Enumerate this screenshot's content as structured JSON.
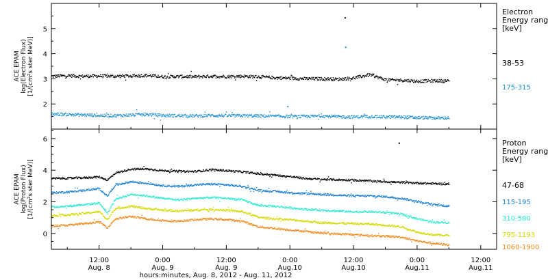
{
  "x_axis": {
    "title": "hours:minutes, Aug.  8, 2012 - Aug. 11, 2012",
    "ticks": [
      {
        "t": 12,
        "time": "12:00",
        "date": "Aug. 8"
      },
      {
        "t": 24,
        "time": "0:00",
        "date": "Aug. 9"
      },
      {
        "t": 36,
        "time": "12:00",
        "date": "Aug. 9"
      },
      {
        "t": 48,
        "time": "0:00",
        "date": "Aug.10"
      },
      {
        "t": 60,
        "time": "12:00",
        "date": "Aug.10"
      },
      {
        "t": 72,
        "time": "0:00",
        "date": "Aug.11"
      },
      {
        "t": 84,
        "time": "12:00",
        "date": "Aug.11"
      }
    ]
  },
  "chart_data": [
    {
      "type": "scatter",
      "panel": "electron",
      "ylabel_lines": [
        "ACE EPAM",
        "log(Electron Flux)",
        "[1/(cm²s ster MeV)]"
      ],
      "ylim": [
        1.0,
        6.0
      ],
      "yticks": [
        2,
        3,
        4,
        5
      ],
      "xlim_hours": [
        3,
        87
      ],
      "legend_title": [
        "Electron",
        "Energy ranges",
        "[keV]"
      ],
      "series": [
        {
          "name": "38-53",
          "color": "#000000",
          "x": [
            3,
            6,
            9,
            12,
            15,
            18,
            21,
            24,
            27,
            30,
            33,
            36,
            39,
            42,
            45,
            48,
            51,
            54,
            57,
            60,
            63,
            66,
            69,
            72,
            75,
            78
          ],
          "y": [
            3.12,
            3.14,
            3.12,
            3.13,
            3.12,
            3.13,
            3.15,
            3.1,
            3.11,
            3.1,
            3.12,
            3.11,
            3.12,
            3.1,
            3.06,
            3.04,
            3.02,
            3.02,
            3.0,
            3.05,
            3.18,
            2.98,
            2.96,
            2.92,
            2.94,
            2.93
          ]
        },
        {
          "name": "175-315",
          "color": "#1a8fd6",
          "x": [
            3,
            6,
            9,
            12,
            15,
            18,
            21,
            24,
            27,
            30,
            33,
            36,
            39,
            42,
            45,
            48,
            51,
            54,
            57,
            60,
            63,
            66,
            69,
            72,
            75,
            78
          ],
          "y": [
            1.62,
            1.6,
            1.58,
            1.56,
            1.55,
            1.58,
            1.6,
            1.56,
            1.55,
            1.54,
            1.56,
            1.55,
            1.55,
            1.54,
            1.53,
            1.52,
            1.52,
            1.54,
            1.51,
            1.5,
            1.52,
            1.5,
            1.5,
            1.47,
            1.46,
            1.46
          ]
        }
      ],
      "outliers": [
        {
          "x": 58.3,
          "y": 5.45,
          "color": "#000000"
        },
        {
          "x": 58.4,
          "y": 4.28,
          "color": "#1a8fd6"
        },
        {
          "x": 47.5,
          "y": 1.92,
          "color": "#1a8fd6"
        }
      ]
    },
    {
      "type": "scatter",
      "panel": "proton",
      "ylabel_lines": [
        "ACE EPAM",
        "log(Proton Flux)",
        "[1/(cm²s ster MeV)]"
      ],
      "ylim": [
        -1.0,
        6.6
      ],
      "yticks": [
        0,
        2,
        4,
        6
      ],
      "xlim_hours": [
        3,
        87
      ],
      "legend_title": [
        "Proton",
        "Energy ranges",
        "[keV]"
      ],
      "series": [
        {
          "name": "47-68",
          "color": "#000000",
          "x": [
            3,
            6,
            9,
            12,
            13.5,
            15,
            18,
            21,
            24,
            27,
            30,
            33,
            36,
            39,
            42,
            45,
            48,
            51,
            54,
            57,
            60,
            63,
            66,
            69,
            72,
            75,
            78
          ],
          "y": [
            3.5,
            3.52,
            3.55,
            3.6,
            3.4,
            3.85,
            4.1,
            4.1,
            4.0,
            3.95,
            3.95,
            4.05,
            4.0,
            3.92,
            3.8,
            3.72,
            3.62,
            3.5,
            3.45,
            3.42,
            3.4,
            3.35,
            3.3,
            3.25,
            3.22,
            3.18,
            3.15
          ]
        },
        {
          "name": "115-195",
          "color": "#1a7fd0",
          "x": [
            3,
            6,
            9,
            12,
            13.5,
            15,
            18,
            21,
            24,
            27,
            30,
            33,
            36,
            39,
            42,
            45,
            48,
            51,
            54,
            57,
            60,
            63,
            66,
            69,
            72,
            75,
            78
          ],
          "y": [
            2.6,
            2.65,
            2.75,
            2.85,
            2.4,
            3.1,
            3.3,
            3.2,
            3.05,
            3.0,
            3.1,
            3.15,
            3.1,
            3.0,
            2.75,
            2.7,
            2.6,
            2.55,
            2.5,
            2.45,
            2.4,
            2.4,
            2.35,
            2.25,
            2.05,
            1.85,
            1.75
          ]
        },
        {
          "name": "310-580",
          "color": "#2de8d0",
          "x": [
            3,
            6,
            9,
            12,
            13.5,
            15,
            18,
            21,
            24,
            27,
            30,
            33,
            36,
            39,
            42,
            45,
            48,
            51,
            54,
            57,
            60,
            63,
            66,
            69,
            72,
            75,
            78
          ],
          "y": [
            1.7,
            1.75,
            1.85,
            1.95,
            1.3,
            2.2,
            2.5,
            2.4,
            2.25,
            2.15,
            2.25,
            2.3,
            2.25,
            2.15,
            1.8,
            1.75,
            1.65,
            1.55,
            1.5,
            1.45,
            1.4,
            1.4,
            1.35,
            1.25,
            0.95,
            0.75,
            0.7
          ]
        },
        {
          "name": "795-1193",
          "color": "#d4d800",
          "x": [
            3,
            6,
            9,
            12,
            13.5,
            15,
            18,
            21,
            24,
            27,
            30,
            33,
            36,
            39,
            42,
            45,
            48,
            51,
            54,
            57,
            60,
            63,
            66,
            69,
            72,
            75,
            78
          ],
          "y": [
            1.15,
            1.2,
            1.3,
            1.4,
            0.9,
            1.6,
            1.75,
            1.6,
            1.5,
            1.45,
            1.5,
            1.55,
            1.5,
            1.4,
            1.05,
            0.95,
            0.9,
            0.8,
            0.7,
            0.68,
            0.65,
            0.62,
            0.55,
            0.45,
            0.1,
            -0.05,
            -0.1
          ]
        },
        {
          "name": "1060-1900",
          "color": "#ee8a1c",
          "x": [
            3,
            6,
            9,
            12,
            13.5,
            15,
            18,
            21,
            24,
            27,
            30,
            33,
            36,
            39,
            42,
            45,
            48,
            51,
            54,
            57,
            60,
            63,
            66,
            69,
            72,
            75,
            78
          ],
          "y": [
            0.5,
            0.55,
            0.65,
            0.75,
            0.4,
            0.95,
            1.1,
            0.95,
            0.85,
            0.8,
            0.9,
            0.95,
            0.9,
            0.8,
            0.45,
            0.35,
            0.25,
            0.15,
            0.05,
            0.0,
            -0.05,
            -0.1,
            -0.15,
            -0.2,
            -0.45,
            -0.6,
            -0.7
          ]
        }
      ],
      "outliers": [
        {
          "x": 68.5,
          "y": 5.75,
          "color": "#000000"
        }
      ]
    }
  ]
}
